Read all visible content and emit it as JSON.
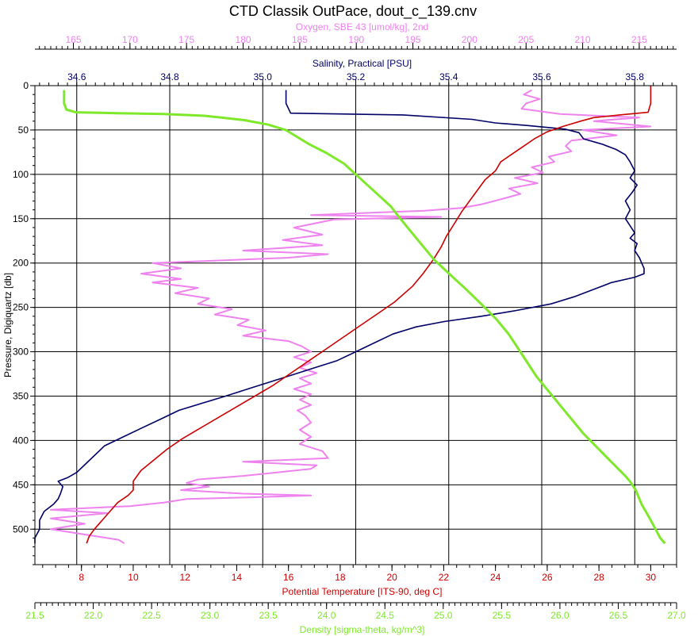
{
  "chart_data": {
    "type": "line",
    "title": "CTD Classik OutPace, dout_c_139.cnv",
    "colors": {
      "oxygen": "#ee82ee",
      "salinity": "#000066",
      "temperature": "#cc0000",
      "density": "#7ee82a",
      "axis": "#000000"
    },
    "grid": true,
    "axes": {
      "pressure": {
        "label": "Pressure, Digiquartz [db]",
        "range": [
          0,
          540
        ],
        "reversed": true,
        "ticks": [
          "0",
          "50",
          "100",
          "150",
          "200",
          "250",
          "300",
          "350",
          "400",
          "450",
          "500"
        ]
      },
      "oxygen": {
        "label": "Oxygen, SBE 43 [umol/kg], 2nd",
        "range": [
          161.6,
          218.3
        ],
        "ticks": [
          "165",
          "170",
          "175",
          "180",
          "185",
          "190",
          "195",
          "200",
          "205",
          "210",
          "215"
        ]
      },
      "salinity": {
        "label": "Salinity, Practical [PSU]",
        "range": [
          34.51,
          35.89
        ],
        "ticks": [
          "34.6",
          "34.8",
          "35.0",
          "35.2",
          "35.4",
          "35.6",
          "35.8"
        ]
      },
      "temperature": {
        "label": "Potential Temperature [ITS-90, deg C]",
        "range": [
          6.2,
          31.0
        ],
        "ticks": [
          "8",
          "10",
          "12",
          "14",
          "16",
          "18",
          "20",
          "22",
          "24",
          "26",
          "28",
          "30"
        ]
      },
      "density": {
        "label": "Density [sigma-theta, kg/m^3]",
        "range": [
          21.5,
          27.0
        ],
        "ticks": [
          "21.5",
          "22.0",
          "22.5",
          "23.0",
          "23.5",
          "24.0",
          "24.5",
          "25.0",
          "25.5",
          "26.0",
          "26.5",
          "27.0"
        ]
      }
    },
    "series": [
      {
        "name": "Oxygen",
        "axis": "oxygen",
        "points": [
          [
            205.5,
            5
          ],
          [
            204.8,
            10
          ],
          [
            206.2,
            15
          ],
          [
            205,
            20
          ],
          [
            204.6,
            26
          ],
          [
            208,
            32
          ],
          [
            215,
            36
          ],
          [
            211,
            40
          ],
          [
            216,
            46
          ],
          [
            210,
            50
          ],
          [
            213,
            56
          ],
          [
            209,
            62
          ],
          [
            208.5,
            68
          ],
          [
            209,
            74
          ],
          [
            207,
            80
          ],
          [
            207.5,
            86
          ],
          [
            205.5,
            92
          ],
          [
            206.5,
            98
          ],
          [
            204,
            104
          ],
          [
            206,
            110
          ],
          [
            203.5,
            116
          ],
          [
            204.5,
            122
          ],
          [
            202.8,
            128
          ],
          [
            201,
            134
          ],
          [
            199.2,
            138
          ],
          [
            196,
            141
          ],
          [
            192,
            143
          ],
          [
            186,
            146
          ],
          [
            197.5,
            148
          ],
          [
            188,
            151
          ],
          [
            184.5,
            160
          ],
          [
            187,
            168
          ],
          [
            183.5,
            174
          ],
          [
            187,
            180
          ],
          [
            180,
            186
          ],
          [
            187.5,
            190
          ],
          [
            184,
            194
          ],
          [
            176,
            198
          ],
          [
            172,
            200
          ],
          [
            174.5,
            206
          ],
          [
            171,
            212
          ],
          [
            174.5,
            218
          ],
          [
            172,
            222
          ],
          [
            176,
            228
          ],
          [
            174,
            234
          ],
          [
            177,
            240
          ],
          [
            176,
            246
          ],
          [
            179,
            252
          ],
          [
            177.5,
            258
          ],
          [
            180.5,
            264
          ],
          [
            179.5,
            270
          ],
          [
            182,
            276
          ],
          [
            180,
            282
          ],
          [
            184,
            288
          ],
          [
            185.2,
            294
          ],
          [
            186,
            300
          ],
          [
            184.5,
            306
          ],
          [
            186,
            312
          ],
          [
            185,
            318
          ],
          [
            186.5,
            324
          ],
          [
            185,
            330
          ],
          [
            186,
            336
          ],
          [
            184.5,
            342
          ],
          [
            186,
            348
          ],
          [
            185,
            354
          ],
          [
            186,
            360
          ],
          [
            184.8,
            366
          ],
          [
            185.5,
            372
          ],
          [
            186,
            380
          ],
          [
            185,
            388
          ],
          [
            186,
            396
          ],
          [
            185,
            404
          ],
          [
            187,
            412
          ],
          [
            187.5,
            420
          ],
          [
            180,
            424
          ],
          [
            186.5,
            428
          ],
          [
            186,
            432
          ],
          [
            183,
            436
          ],
          [
            180,
            440
          ],
          [
            176,
            444
          ],
          [
            175,
            448
          ],
          [
            177,
            452
          ],
          [
            174.5,
            456
          ],
          [
            180,
            460
          ],
          [
            186,
            462
          ],
          [
            181,
            464
          ],
          [
            175,
            466
          ],
          [
            173,
            470
          ],
          [
            170,
            474
          ],
          [
            163,
            478
          ],
          [
            168,
            482
          ],
          [
            163,
            488
          ],
          [
            166,
            494
          ],
          [
            163,
            500
          ],
          [
            166,
            506
          ],
          [
            169,
            512
          ],
          [
            169.5,
            516
          ]
        ]
      },
      {
        "name": "Salinity",
        "axis": "salinity",
        "points": [
          [
            35.05,
            5
          ],
          [
            35.05,
            20
          ],
          [
            35.06,
            31
          ],
          [
            35.3,
            33
          ],
          [
            35.45,
            38
          ],
          [
            35.5,
            42
          ],
          [
            35.57,
            45
          ],
          [
            35.65,
            49
          ],
          [
            35.68,
            53
          ],
          [
            35.69,
            60
          ],
          [
            35.73,
            66
          ],
          [
            35.76,
            72
          ],
          [
            35.78,
            78
          ],
          [
            35.79,
            86
          ],
          [
            35.8,
            96
          ],
          [
            35.79,
            104
          ],
          [
            35.805,
            112
          ],
          [
            35.795,
            120
          ],
          [
            35.78,
            130
          ],
          [
            35.79,
            140
          ],
          [
            35.78,
            150
          ],
          [
            35.79,
            158
          ],
          [
            35.8,
            166
          ],
          [
            35.79,
            172
          ],
          [
            35.805,
            178
          ],
          [
            35.8,
            186
          ],
          [
            35.81,
            194
          ],
          [
            35.815,
            200
          ],
          [
            35.82,
            206
          ],
          [
            35.82,
            212
          ],
          [
            35.8,
            216
          ],
          [
            35.75,
            222
          ],
          [
            35.71,
            230
          ],
          [
            35.67,
            238
          ],
          [
            35.62,
            246
          ],
          [
            35.54,
            254
          ],
          [
            35.47,
            260
          ],
          [
            35.39,
            266
          ],
          [
            35.33,
            272
          ],
          [
            35.28,
            280
          ],
          [
            35.24,
            290
          ],
          [
            35.2,
            300
          ],
          [
            35.16,
            310
          ],
          [
            35.1,
            320
          ],
          [
            35.04,
            330
          ],
          [
            34.98,
            340
          ],
          [
            34.92,
            350
          ],
          [
            34.87,
            358
          ],
          [
            34.82,
            366
          ],
          [
            34.78,
            376
          ],
          [
            34.74,
            386
          ],
          [
            34.7,
            396
          ],
          [
            34.66,
            406
          ],
          [
            34.64,
            416
          ],
          [
            34.62,
            426
          ],
          [
            34.6,
            436
          ],
          [
            34.58,
            442
          ],
          [
            34.56,
            446
          ],
          [
            34.57,
            452
          ],
          [
            34.565,
            460
          ],
          [
            34.56,
            466
          ],
          [
            34.55,
            472
          ],
          [
            34.53,
            480
          ],
          [
            34.52,
            490
          ],
          [
            34.52,
            500
          ],
          [
            34.51,
            510
          ],
          [
            34.51,
            516
          ]
        ]
      },
      {
        "name": "Potential Temperature",
        "axis": "temperature",
        "points": [
          [
            30,
            0
          ],
          [
            30,
            20
          ],
          [
            29.9,
            30
          ],
          [
            28.8,
            33
          ],
          [
            27.8,
            36
          ],
          [
            27.3,
            40
          ],
          [
            26.6,
            46
          ],
          [
            26,
            52
          ],
          [
            25.5,
            60
          ],
          [
            25,
            70
          ],
          [
            24.6,
            78
          ],
          [
            24.2,
            86
          ],
          [
            24,
            96
          ],
          [
            23.6,
            106
          ],
          [
            23.3,
            118
          ],
          [
            23,
            130
          ],
          [
            22.7,
            142
          ],
          [
            22.4,
            156
          ],
          [
            22.1,
            170
          ],
          [
            21.9,
            182
          ],
          [
            21.6,
            196
          ],
          [
            21.2,
            212
          ],
          [
            20.8,
            226
          ],
          [
            20.1,
            244
          ],
          [
            19.4,
            258
          ],
          [
            18.8,
            270
          ],
          [
            18.2,
            282
          ],
          [
            17.5,
            296
          ],
          [
            16.8,
            310
          ],
          [
            16.1,
            324
          ],
          [
            15.4,
            338
          ],
          [
            14.7,
            350
          ],
          [
            14,
            362
          ],
          [
            13.3,
            374
          ],
          [
            12.6,
            386
          ],
          [
            11.9,
            398
          ],
          [
            11.3,
            410
          ],
          [
            10.8,
            422
          ],
          [
            10.3,
            434
          ],
          [
            10.1,
            442
          ],
          [
            10,
            446
          ],
          [
            10,
            456
          ],
          [
            9.8,
            462
          ],
          [
            9.4,
            470
          ],
          [
            9.1,
            480
          ],
          [
            8.8,
            490
          ],
          [
            8.5,
            500
          ],
          [
            8.3,
            508
          ],
          [
            8.2,
            516
          ]
        ]
      },
      {
        "name": "Density",
        "axis": "density",
        "points": [
          [
            21.75,
            5
          ],
          [
            21.75,
            20
          ],
          [
            21.77,
            27
          ],
          [
            21.85,
            30
          ],
          [
            22.2,
            31
          ],
          [
            22.6,
            32
          ],
          [
            22.95,
            34
          ],
          [
            23.1,
            36
          ],
          [
            23.3,
            39
          ],
          [
            23.5,
            44
          ],
          [
            23.65,
            50
          ],
          [
            23.75,
            58
          ],
          [
            23.85,
            66
          ],
          [
            24,
            76
          ],
          [
            24.15,
            88
          ],
          [
            24.25,
            100
          ],
          [
            24.35,
            112
          ],
          [
            24.45,
            124
          ],
          [
            24.55,
            136
          ],
          [
            24.62,
            148
          ],
          [
            24.72,
            164
          ],
          [
            24.82,
            180
          ],
          [
            24.92,
            196
          ],
          [
            25.05,
            212
          ],
          [
            25.2,
            230
          ],
          [
            25.34,
            248
          ],
          [
            25.46,
            264
          ],
          [
            25.56,
            280
          ],
          [
            25.64,
            296
          ],
          [
            25.72,
            312
          ],
          [
            25.8,
            328
          ],
          [
            25.9,
            344
          ],
          [
            26,
            360
          ],
          [
            26.1,
            376
          ],
          [
            26.2,
            392
          ],
          [
            26.32,
            408
          ],
          [
            26.44,
            424
          ],
          [
            26.56,
            440
          ],
          [
            26.6,
            446
          ],
          [
            26.65,
            456
          ],
          [
            26.7,
            472
          ],
          [
            26.77,
            488
          ],
          [
            26.82,
            500
          ],
          [
            26.86,
            510
          ],
          [
            26.9,
            516
          ]
        ]
      }
    ]
  }
}
